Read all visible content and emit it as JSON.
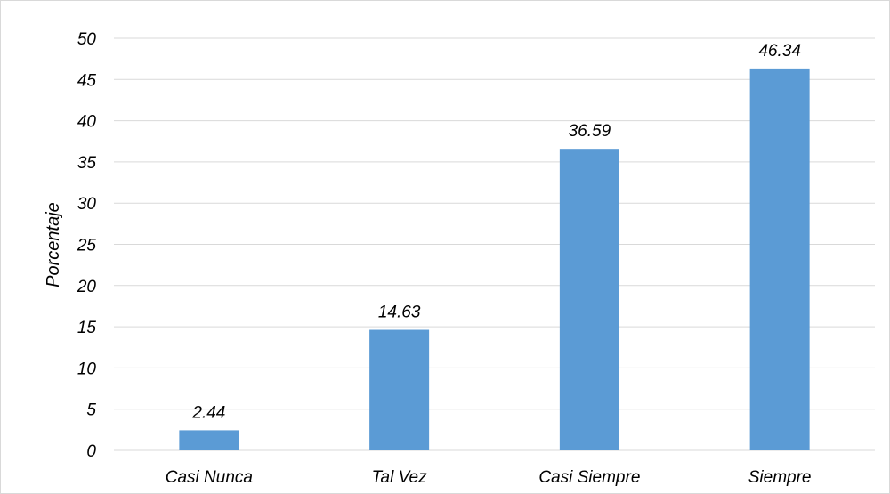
{
  "chart_data": {
    "type": "bar",
    "categories": [
      "Casi Nunca",
      "Tal Vez",
      "Casi Siempre",
      "Siempre"
    ],
    "values": [
      2.44,
      14.63,
      36.59,
      46.34
    ],
    "data_labels": [
      "2.44",
      "14.63",
      "36.59",
      "46.34"
    ],
    "title": "",
    "xlabel": "",
    "ylabel": "Porcentaje",
    "ylim": [
      0,
      50
    ],
    "yticks": [
      0,
      5,
      10,
      15,
      20,
      25,
      30,
      35,
      40,
      45,
      50
    ],
    "grid": true,
    "legend": "none",
    "bar_color": "#5b9bd5",
    "grid_color": "#d9d9d9"
  }
}
